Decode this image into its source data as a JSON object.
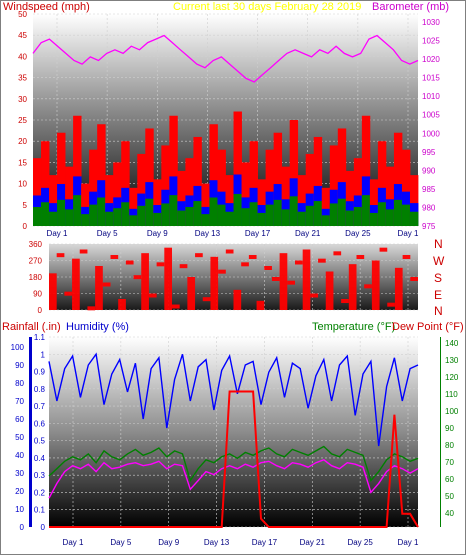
{
  "header": {
    "left_label": "Windspeed (mph)",
    "center_label": "Current last 30 days February 28 2019",
    "right_label": "Barometer (mb)"
  },
  "lower_header": {
    "rain_label": "Rainfall (.in)",
    "humidity_label": "Humidity (%)",
    "temp_label": "Temperature (°F)",
    "dew_label": "Dew Point (°F)"
  },
  "colors": {
    "wind_speed": "#ff0000",
    "wind_avg": "#0000ff",
    "wind_low": "#008000",
    "barometer": "#ff00ff",
    "direction": "#ff0000",
    "humidity": "#0000ff",
    "temperature": "#008000",
    "dewpoint": "#ff00ff",
    "rain": "#ff0000",
    "label_wind": "#cc0000",
    "label_center": "#ffff00",
    "label_baro": "#cc00cc"
  },
  "chart_data": [
    {
      "type": "area",
      "x_tick_labels": [
        "Day 1",
        "Day 5",
        "Day 9",
        "Day 13",
        "Day 17",
        "Day 21",
        "Day 25",
        "Day 1"
      ],
      "left_axis": {
        "ticks": [
          "0",
          "5",
          "10",
          "15",
          "20",
          "25",
          "30",
          "35",
          "40",
          "45",
          "50"
        ],
        "ylim": [
          0,
          50
        ]
      },
      "right_axis": {
        "ticks": [
          "975",
          "980",
          "985",
          "990",
          "995",
          "1000",
          "1005",
          "1010",
          "1015",
          "1020",
          "1025",
          "1030"
        ],
        "ylim": [
          975,
          1032
        ]
      },
      "series": [
        {
          "name": "Windspeed (mph)",
          "values": [
            16,
            20,
            12,
            22,
            14,
            26,
            10,
            18,
            24,
            12,
            15,
            20,
            9,
            17,
            23,
            11,
            19,
            26,
            13,
            16,
            21,
            10,
            24,
            18,
            12,
            27,
            15,
            20,
            11,
            18,
            22,
            14,
            25,
            12,
            17,
            21,
            9,
            19,
            23,
            13,
            16,
            26,
            11,
            20,
            14,
            22,
            18,
            12
          ]
        },
        {
          "name": "Barometer (mb)",
          "values": [
            1021,
            1024,
            1025,
            1023,
            1021,
            1019,
            1018,
            1020,
            1019,
            1021,
            1022,
            1021,
            1023,
            1022,
            1024,
            1025,
            1026,
            1024,
            1022,
            1020,
            1018,
            1017,
            1019,
            1020,
            1018,
            1016,
            1014,
            1013,
            1015,
            1017,
            1019,
            1021,
            1022,
            1021,
            1020,
            1022,
            1021,
            1023,
            1021,
            1020,
            1021,
            1025,
            1026,
            1024,
            1022,
            1019,
            1018,
            1019
          ]
        }
      ]
    },
    {
      "type": "line",
      "x_tick_labels": [],
      "left_axis": {
        "ticks": [
          "0",
          "90",
          "180",
          "270",
          "360"
        ],
        "ylim": [
          0,
          360
        ]
      },
      "right_axis": {
        "ticks": [
          "N",
          "W",
          "S",
          "E",
          "N"
        ]
      },
      "series": [
        {
          "name": "",
          "values": [
            200,
            310,
            100,
            280,
            330,
            20,
            240,
            150,
            300,
            60,
            270,
            190,
            310,
            90,
            260,
            340,
            30,
            250,
            180,
            310,
            70,
            290,
            220,
            330,
            110,
            260,
            300,
            50,
            240,
            180,
            310,
            160,
            270,
            330,
            90,
            280,
            210,
            320,
            60,
            250,
            300,
            140,
            270,
            340,
            40,
            230,
            300,
            180
          ]
        }
      ]
    },
    {
      "type": "line",
      "x_tick_labels": [
        "Day 1",
        "Day 5",
        "Day 9",
        "Day 13",
        "Day 17",
        "Day 21",
        "Day 25",
        "Day 1"
      ],
      "left_axis": {
        "ticks": [
          "0",
          "0.1",
          "0.2",
          "0.3",
          "0.4",
          "0.5",
          "0.6",
          "0.7",
          "0.8",
          "0.9",
          "1",
          "1.1"
        ],
        "ylim": [
          0,
          1.15
        ]
      },
      "humidity_axis": {
        "ticks": [
          "0",
          "10",
          "20",
          "30",
          "40",
          "50",
          "60",
          "70",
          "80",
          "90",
          "100"
        ],
        "ylim": [
          0,
          100
        ]
      },
      "right_axis": {
        "ticks": [
          "40",
          "50",
          "60",
          "70",
          "80",
          "90",
          "100",
          "110",
          "120",
          "130",
          "140"
        ],
        "ylim": [
          30,
          145
        ]
      },
      "series": [
        {
          "name": "Humidity (%)",
          "values": [
            92,
            70,
            88,
            95,
            72,
            90,
            96,
            68,
            85,
            93,
            75,
            91,
            60,
            88,
            94,
            55,
            82,
            96,
            70,
            89,
            93,
            65,
            87,
            95,
            74,
            90,
            92,
            68,
            86,
            94,
            72,
            91,
            88,
            66,
            84,
            93,
            70,
            90,
            95,
            62,
            85,
            92,
            45,
            78,
            94,
            70,
            88,
            90
          ]
        },
        {
          "name": "Temperature (°F)",
          "values": [
            55,
            60,
            65,
            68,
            66,
            70,
            64,
            72,
            68,
            66,
            70,
            73,
            69,
            71,
            74,
            68,
            72,
            70,
            52,
            60,
            66,
            64,
            68,
            70,
            67,
            71,
            69,
            72,
            74,
            70,
            68,
            73,
            71,
            69,
            72,
            75,
            70,
            68,
            73,
            71,
            69,
            52,
            58,
            66,
            70,
            68,
            65,
            67
          ]
        },
        {
          "name": "Dew Point (°F)",
          "values": [
            40,
            50,
            58,
            62,
            60,
            63,
            58,
            64,
            60,
            61,
            63,
            64,
            62,
            63,
            65,
            60,
            63,
            62,
            46,
            52,
            58,
            56,
            60,
            62,
            60,
            63,
            61,
            64,
            65,
            62,
            60,
            64,
            63,
            61,
            64,
            66,
            62,
            60,
            64,
            63,
            61,
            44,
            50,
            58,
            62,
            60,
            57,
            60
          ]
        },
        {
          "name": "Rainfall (.in)",
          "values": [
            0,
            0,
            0,
            0,
            0,
            0,
            0,
            0,
            0,
            0,
            0,
            0,
            0,
            0,
            0,
            0,
            0,
            0,
            0,
            0,
            0,
            0,
            0,
            0.82,
            0.82,
            0.82,
            0.82,
            0.05,
            0,
            0,
            0,
            0,
            0,
            0,
            0,
            0,
            0,
            0,
            0,
            0,
            0,
            0,
            0,
            0,
            0.68,
            0.08,
            0.08,
            0
          ]
        }
      ]
    }
  ]
}
